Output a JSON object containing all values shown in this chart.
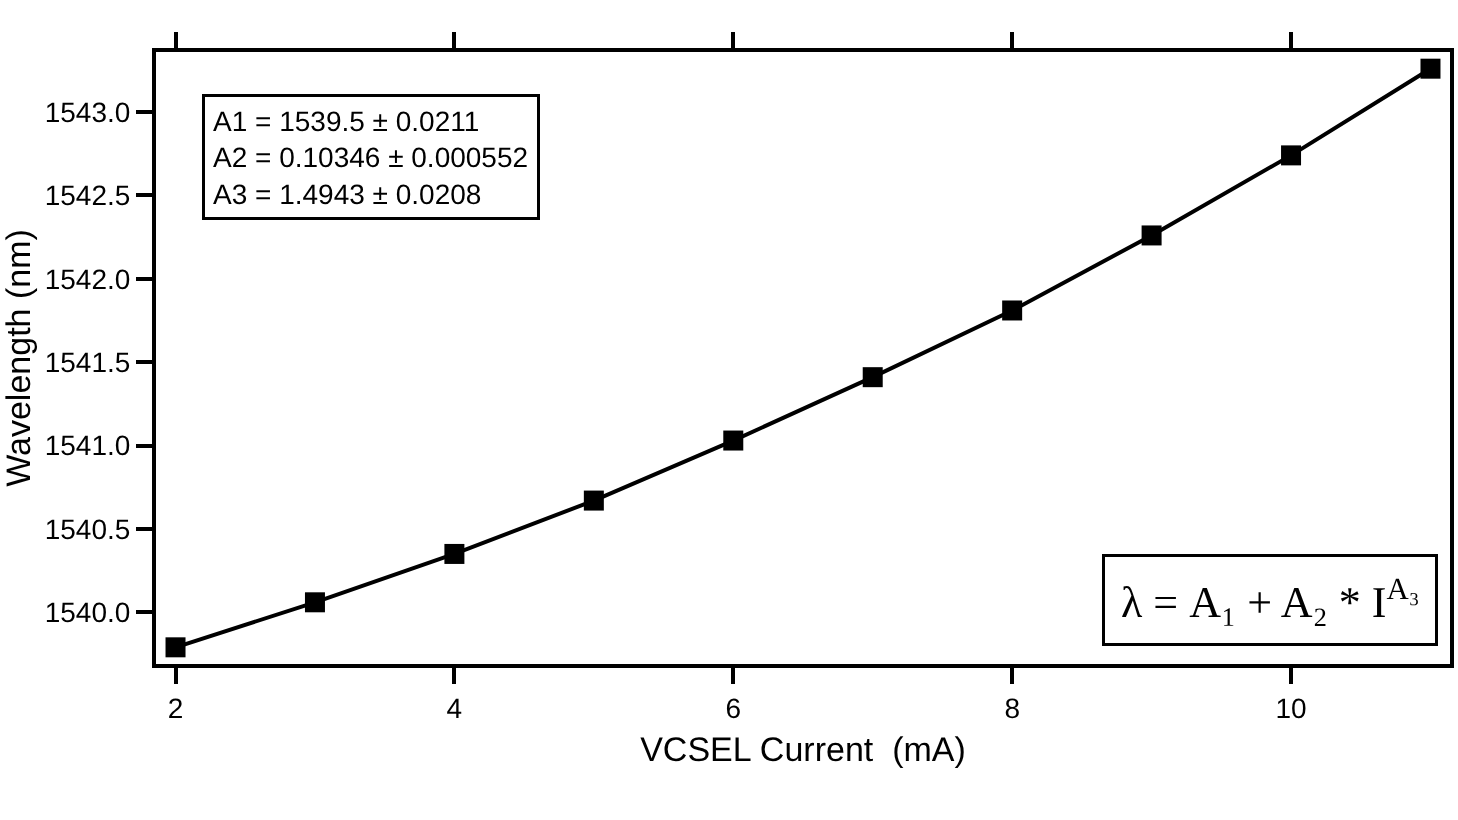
{
  "chart_data": {
    "type": "line",
    "xlabel": "VCSEL Current  (mA)",
    "ylabel": "Wavelength (nm)",
    "x": [
      2,
      3,
      4,
      5,
      6,
      7,
      8,
      9,
      10,
      11
    ],
    "series": [
      {
        "color": "#000000",
        "values": [
          1539.79,
          1540.06,
          1540.35,
          1540.67,
          1541.03,
          1541.41,
          1541.81,
          1542.26,
          1542.74,
          1543.26
        ]
      }
    ],
    "xlim": [
      1.86,
      11.14
    ],
    "xticks": [
      2,
      4,
      6,
      8,
      10
    ],
    "ylim": [
      1539.69,
      1543.36
    ],
    "yticks": [
      {
        "value": 1540,
        "label": "1540.0"
      },
      {
        "value": 1540.5,
        "label": "1540.5"
      },
      {
        "value": 1541,
        "label": "1541.0"
      },
      {
        "value": 1541.5,
        "label": "1541.5"
      },
      {
        "value": 1542,
        "label": "1542.0"
      },
      {
        "value": 1542.5,
        "label": "1542.5"
      },
      {
        "value": 1543,
        "label": "1543.0"
      }
    ],
    "annotations": [
      "A1 = 1539.5 ± 0.0211\nA2 = 0.10346 ± 0.000552\nA3 = 1.4943 ± 0.0208",
      "λ = A₁ + A₂ * I$^{A₃}$"
    ],
    "marker": "square",
    "line_style": "solid",
    "grid": false,
    "legend": false
  }
}
